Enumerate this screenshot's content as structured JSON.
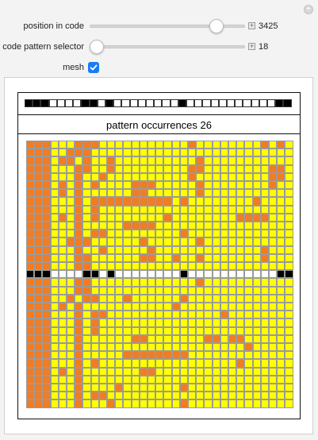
{
  "controls": {
    "position_label": "position in code",
    "position_value": "3425",
    "position_fraction": 0.85,
    "pattern_label": "code pattern selector",
    "pattern_value": "18",
    "pattern_fraction": 0.0,
    "mesh_label": "mesh",
    "mesh_checked": true,
    "plus_symbol": "+"
  },
  "figure": {
    "title": "pattern occurrences 26",
    "code_pattern": [
      1,
      1,
      1,
      0,
      0,
      0,
      0,
      1,
      1,
      0,
      1,
      0,
      0,
      0,
      0,
      0,
      0,
      0,
      0,
      1,
      0,
      0,
      0,
      0,
      0,
      0,
      0,
      0,
      0,
      0,
      0,
      1,
      1
    ],
    "pattern_row": 16,
    "colors": {
      "orange": "#f47b20",
      "yellow": "#ffff00",
      "black": "#000000",
      "white": "#ffffff",
      "mesh": "#9a9a9a"
    },
    "grid": [
      "111000111000000000001000000001010",
      "111001110000000000000000000000000",
      "111011010010000000000100000000000",
      "111000110010000000001100000000110",
      "111000100100000000001000000000110",
      "111010101000011100000100000000100",
      "111010100000011000000100000000000",
      "111000101111111111010000000010000",
      "111000101000000000000000000000000",
      "111010101000000001000000001111000",
      "111000100000111100000000000000000",
      "111000101100000000010000000000000",
      "111001110000001000000100000000000",
      "111000100100000100000000000001000",
      "111000110000001100100100000001000",
      "111000110000000000000000000000000",
      "111000111010000000010000000000011",
      "111000110000000000000100000000000",
      "111000110000000000000000000000000",
      "111001011000100000010000000000000",
      "111010100000000000100000000000000",
      "111000101100000000000000100000000",
      "111000101000000000000000000000000",
      "111000101000000000000000000000000",
      "111000100000011000000011011000000",
      "111000100000000000000000000100000",
      "111000100000111111110000000000000",
      "111000101000000000000000001000000",
      "111010100000001100000000000000000",
      "111000100000000000000000000000000",
      "111000100001000000010000000000000",
      "111000101100000000000000000000000",
      "111000100010000000010000000000000"
    ]
  }
}
